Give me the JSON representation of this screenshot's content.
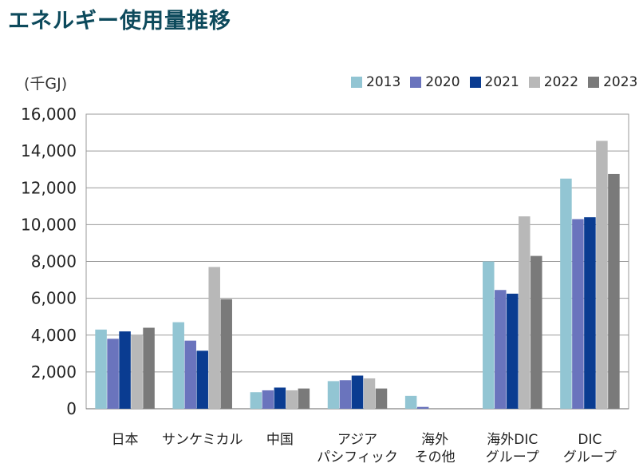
{
  "chart_data": {
    "type": "bar",
    "title": "エネルギー使用量推移",
    "unit_label": "(千GJ)",
    "ylim": [
      0,
      16000
    ],
    "yticks": [
      0,
      2000,
      4000,
      6000,
      8000,
      10000,
      12000,
      14000,
      16000
    ],
    "ytick_labels": [
      "0",
      "2,000",
      "4,000",
      "6,000",
      "8,000",
      "10,000",
      "12,000",
      "14,000",
      "16,000"
    ],
    "grid": true,
    "legend_position": "top-right",
    "categories": [
      [
        "日本"
      ],
      [
        "サンケミカル"
      ],
      [
        "中国"
      ],
      [
        "アジア",
        "パシフィック"
      ],
      [
        "海外",
        "その他"
      ],
      [
        "海外DIC",
        "グループ"
      ],
      [
        "DIC",
        "グループ"
      ]
    ],
    "series": [
      {
        "name": "2013",
        "color": "#92c5d3",
        "values": [
          4300,
          4700,
          900,
          1500,
          700,
          8000,
          12500
        ]
      },
      {
        "name": "2020",
        "color": "#6a74bd",
        "values": [
          3800,
          3700,
          1000,
          1550,
          100,
          6450,
          10300
        ]
      },
      {
        "name": "2021",
        "color": "#0a3c91",
        "values": [
          4200,
          3150,
          1150,
          1800,
          0,
          6250,
          10400
        ]
      },
      {
        "name": "2022",
        "color": "#b8b8b8",
        "values": [
          4000,
          7700,
          1000,
          1650,
          0,
          10450,
          14550
        ]
      },
      {
        "name": "2023",
        "color": "#7a7a7a",
        "values": [
          4400,
          5950,
          1100,
          1100,
          0,
          8300,
          12750
        ]
      }
    ]
  }
}
